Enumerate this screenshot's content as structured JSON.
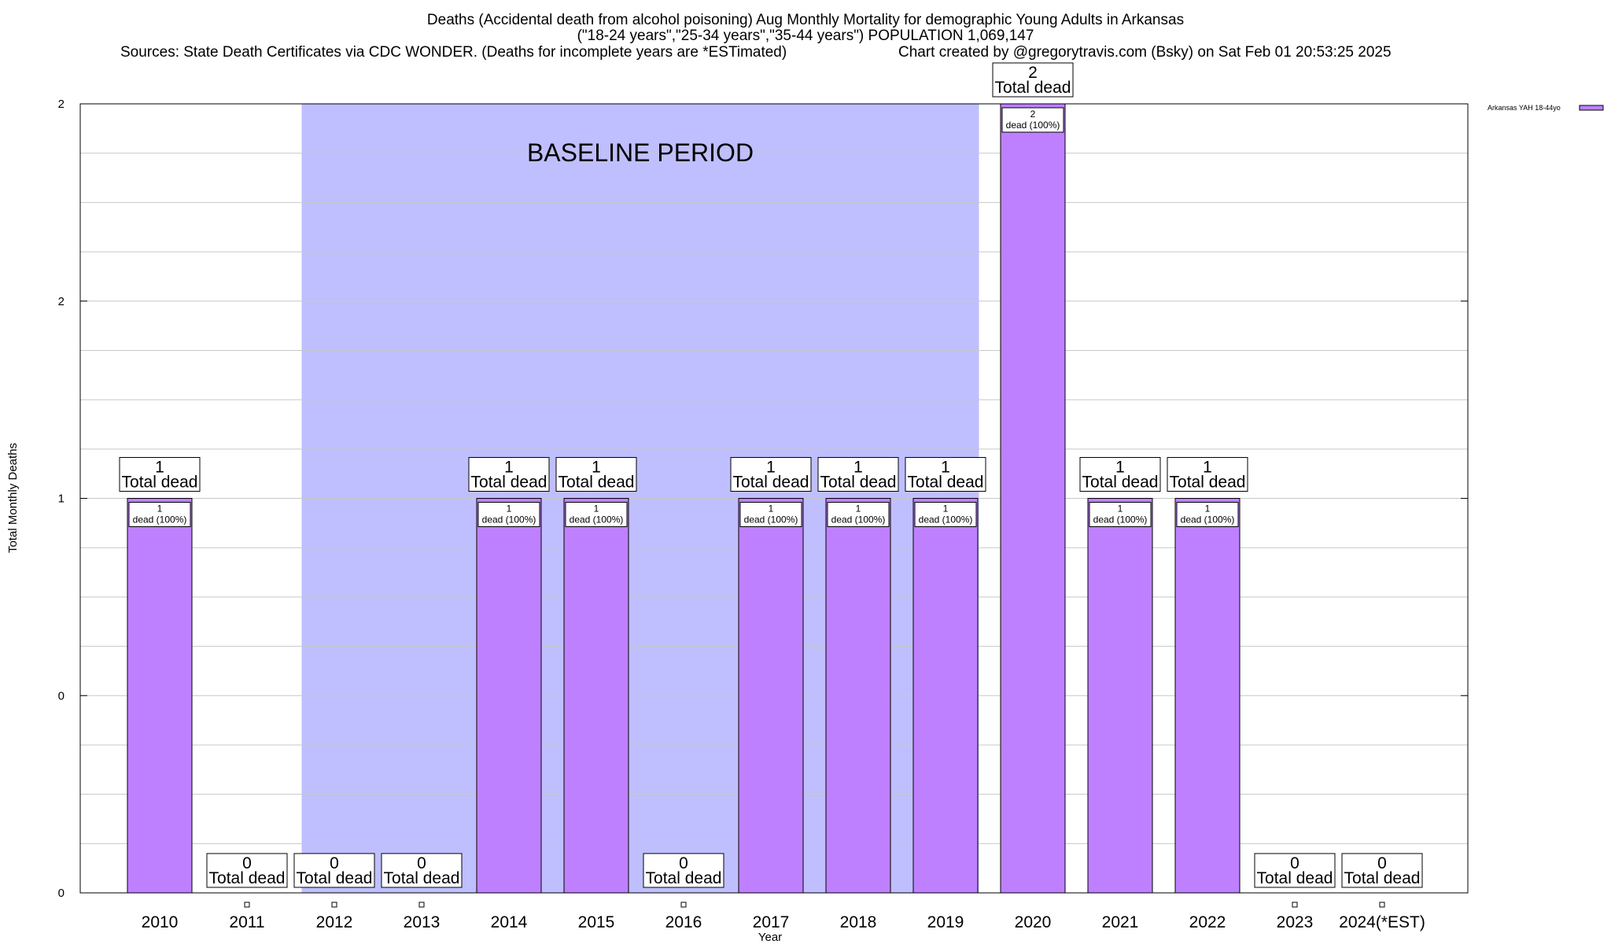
{
  "chart_data": {
    "type": "bar",
    "title_lines": [
      "Deaths (Accidental death from alcohol poisoning) Aug Monthly Mortality for demographic Young Adults in Arkansas",
      "(\"18-24 years\",\"25-34 years\",\"35-44 years\") POPULATION 1,069,147"
    ],
    "source_text": "Sources: State Death Certificates via CDC WONDER. (Deaths for incomplete years are *ESTimated)",
    "credit_text": "Chart created by @gregorytravis.com (Bsky) on Sat Feb 01 20:53:25 2025",
    "xlabel": "Year",
    "ylabel": "Total Monthly Deaths",
    "categories": [
      "2010",
      "2011",
      "2012",
      "2013",
      "2014",
      "2015",
      "2016",
      "2017",
      "2018",
      "2019",
      "2020",
      "2021",
      "2022",
      "2023",
      "2024(*EST)"
    ],
    "series": [
      {
        "name": "Arkansas YAH 18-44yo",
        "values": [
          1,
          0,
          0,
          0,
          1,
          1,
          0,
          1,
          1,
          1,
          2,
          1,
          1,
          0,
          0
        ],
        "color": "#bf80ff"
      }
    ],
    "ylim": [
      0,
      2
    ],
    "ytick_values": [
      0,
      0.5,
      1,
      1.5,
      2
    ],
    "ytick_labels": [
      "0",
      "0",
      "1",
      "2",
      "2"
    ],
    "grid": true,
    "legend_position": "top-right",
    "baseline_period": {
      "label": "BASELINE PERIOD",
      "start": "2012",
      "end": "2019",
      "color": "#bfbfff"
    },
    "total_label_suffix": "Total dead",
    "inner_label_suffix": "dead (100%)"
  }
}
